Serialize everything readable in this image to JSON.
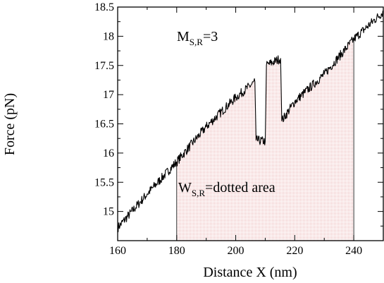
{
  "chart_data": {
    "type": "line",
    "title": "",
    "xlabel": "Distance X (nm)",
    "ylabel": "Force (pN)",
    "xlim": [
      160,
      250
    ],
    "ylim": [
      14.5,
      18.5
    ],
    "xticks": [
      160,
      180,
      200,
      220,
      240
    ],
    "yticks": [
      15,
      15.5,
      16,
      16.5,
      17,
      17.5,
      18,
      18.5
    ],
    "xtick_labels": [
      "160",
      "180",
      "200",
      "220",
      "240"
    ],
    "ytick_labels": [
      "15",
      "15.5",
      "16",
      "16.5",
      "17",
      "17.5",
      "18",
      "18.5"
    ],
    "grid": false,
    "legend": "none",
    "annotations": [
      {
        "main": "M",
        "sub": "S,R",
        "rest": "=3"
      },
      {
        "main": "W",
        "sub": "S,R",
        "rest": "=dotted area"
      }
    ],
    "shaded_region": {
      "x_start": 180,
      "x_end": 240,
      "fill": "#e8a9a9",
      "pattern": "dotted"
    },
    "series": [
      {
        "color": "#000000",
        "segments": [
          {
            "x": [
              160,
              170,
              180,
              190,
              200,
              206.5
            ],
            "y": [
              14.72,
              15.3,
              15.85,
              16.45,
              16.95,
              17.22
            ]
          },
          {
            "x": [
              206.5,
              206.9
            ],
            "y": [
              17.22,
              16.22
            ]
          },
          {
            "x": [
              206.9,
              210
            ],
            "y": [
              16.22,
              16.2
            ]
          },
          {
            "x": [
              210,
              210.4
            ],
            "y": [
              16.2,
              17.5
            ]
          },
          {
            "x": [
              210.4,
              215.2
            ],
            "y": [
              17.5,
              17.62
            ]
          },
          {
            "x": [
              215.2,
              215.6
            ],
            "y": [
              17.62,
              16.55
            ]
          },
          {
            "x": [
              215.6,
              220,
              230,
              240,
              250
            ],
            "y": [
              16.55,
              16.88,
              17.35,
              17.95,
              18.42
            ]
          }
        ]
      }
    ]
  }
}
